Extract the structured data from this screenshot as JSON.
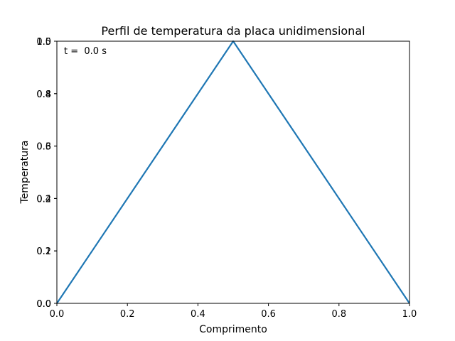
{
  "chart_data": {
    "type": "line",
    "title": "Perfil de temperatura da placa unidimensional",
    "xlabel": "Comprimento",
    "ylabel": "Temperatura",
    "xlim": [
      0.0,
      1.0
    ],
    "ylim": [
      0.0,
      1.0
    ],
    "x_ticks": [
      "0.0",
      "0.2",
      "0.4",
      "0.6",
      "0.8",
      "1.0"
    ],
    "y_ticks_primary": [
      "0.0",
      "0.2",
      "0.4",
      "0.6",
      "0.8",
      "1.0"
    ],
    "y_ticks_overlay": [
      "0.0",
      "0.1",
      "0.2",
      "0.3",
      "0.4",
      "0.5"
    ],
    "annotation": "t =  0.0 s",
    "grid": false,
    "line_color": "#1f77b4",
    "series": [
      {
        "x": [
          0.0,
          0.5,
          1.0
        ],
        "y": [
          0.0,
          1.0,
          0.0
        ]
      }
    ]
  }
}
